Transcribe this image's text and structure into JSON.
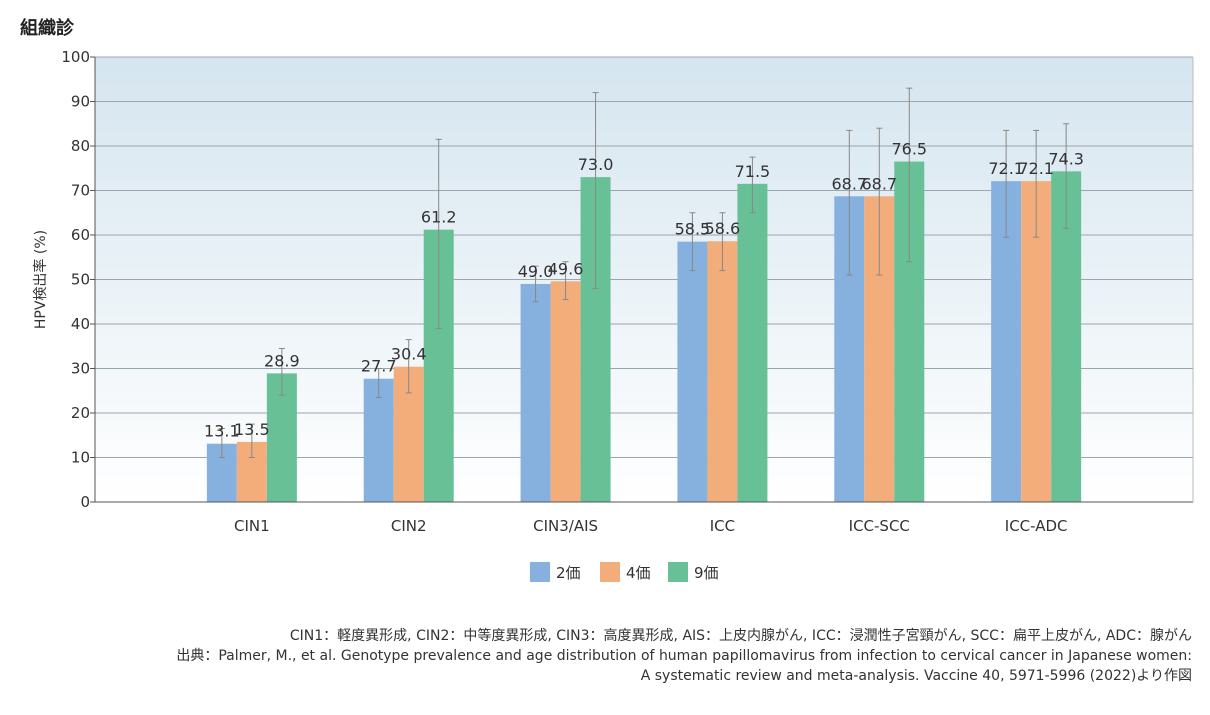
{
  "page": {
    "title": "組織診"
  },
  "colors": {
    "2価": "#86b1df",
    "4価": "#f3ad7b",
    "9価": "#68c096",
    "plot_bg_top": "#d5e5ef",
    "plot_bg_bottom": "#ffffff",
    "gridline": "#9aa6ae",
    "error_bar": "#888888"
  },
  "chart_data": {
    "type": "bar",
    "title": "",
    "xlabel": "",
    "ylabel": "HPV検出率 (%)",
    "ylim": [
      0,
      100
    ],
    "yticks": [
      "0",
      "10",
      "20",
      "30",
      "40",
      "50",
      "60",
      "70",
      "80",
      "90",
      "100"
    ],
    "grid": true,
    "legend_position": "bottom-center",
    "categories": [
      "CIN1",
      "CIN2",
      "CIN3/AIS",
      "ICC",
      "ICC-SCC",
      "ICC-ADC"
    ],
    "series": [
      {
        "name": "2価",
        "values": [
          13.1,
          27.7,
          49.0,
          58.5,
          68.7,
          72.1
        ],
        "value_labels": [
          "13.1",
          "27.7",
          "49.0",
          "58.5",
          "68.7",
          "72.1"
        ],
        "error_low": [
          10,
          23.5,
          45,
          52,
          51,
          59.5
        ],
        "error_high": [
          16.5,
          30,
          53,
          65,
          83.5,
          83.5
        ]
      },
      {
        "name": "4価",
        "values": [
          13.5,
          30.4,
          49.6,
          58.6,
          68.7,
          72.1
        ],
        "value_labels": [
          "13.5",
          "30.4",
          "49.6",
          "58.6",
          "68.7",
          "72.1"
        ],
        "error_low": [
          10,
          24.5,
          45.5,
          52,
          51,
          59.5
        ],
        "error_high": [
          17.5,
          36.5,
          54,
          65,
          84,
          83.5
        ]
      },
      {
        "name": "9価",
        "values": [
          28.9,
          61.2,
          73.0,
          71.5,
          76.5,
          74.3
        ],
        "value_labels": [
          "28.9",
          "61.2",
          "73.0",
          "71.5",
          "76.5",
          "74.3"
        ],
        "error_low": [
          24,
          39,
          48,
          65,
          54,
          61.5
        ],
        "error_high": [
          34.5,
          81.5,
          92,
          77.5,
          93,
          85
        ]
      }
    ]
  },
  "notes": {
    "abbreviations": "CIN1：軽度異形成, CIN2：中等度異形成, CIN3：高度異形成, AIS：上皮内腺がん, ICC：浸潤性子宮頸がん, SCC：扁平上皮がん, ADC：腺がん",
    "source_line1": "出典：Palmer, M., et al. Genotype prevalence and age distribution of human papillomavirus from infection to cervical cancer in Japanese women:",
    "source_line2": "A systematic review and meta-analysis. Vaccine 40, 5971-5996 (2022)より作図"
  }
}
